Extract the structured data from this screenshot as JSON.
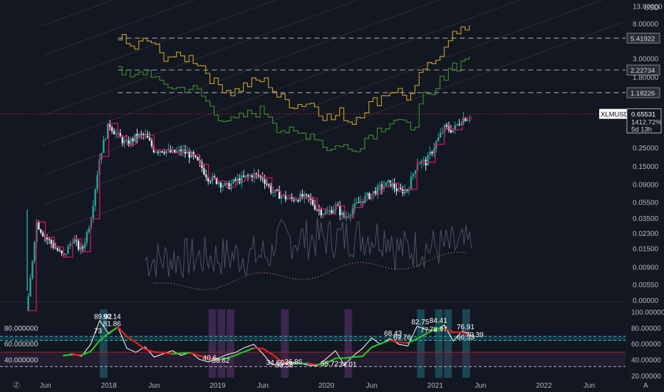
{
  "colors": {
    "background": "#131722",
    "candle_up": "#26a69a",
    "candle_down": "#ef5350",
    "price_line": "#c2185b",
    "upper_band": "#c9a227",
    "lower_band": "#3f8f2a",
    "dashed_level": "#9598a1",
    "rsi_line": "#ffffff",
    "rsi_ma_up": "#22c52b",
    "rsi_ma_down": "#e91e1e",
    "ob_band": "#26c6da",
    "os_band": "#7e57c2",
    "highlight_teal": "#1e5d68",
    "highlight_purple": "#4a2f5c"
  },
  "chart_data": [
    {
      "type": "line",
      "symbol": "XLMUSD",
      "scale": "log",
      "y_axis": {
        "currency": "USD",
        "tick_labels": [
          "13.00000",
          "8.00000",
          "3.00000",
          "1.80000",
          "0.25000",
          "0.15000",
          "0.09000",
          "0.05500",
          "0.03500",
          "0.02300",
          "0.01500",
          "0.00900",
          "0.00550",
          "0.00000"
        ],
        "ylim": [
          0.0046,
          14.5
        ]
      },
      "x_axis": {
        "tick_labels": [
          "Jun",
          "2018",
          "Jun",
          "2019",
          "Jun",
          "2020",
          "Jun",
          "2021",
          "Jun",
          "2022",
          "Jun"
        ],
        "tick_dates": [
          "2017-06",
          "2018-01",
          "2018-06",
          "2019-01",
          "2019-06",
          "2020-01",
          "2020-06",
          "2021-01",
          "2021-06",
          "2022-01",
          "2022-06"
        ],
        "xlim": [
          "2017-01",
          "2022-10"
        ]
      },
      "price_series": {
        "name": "XLMUSD",
        "x": [
          "2017-04",
          "2017-05",
          "2017-06",
          "2017-07",
          "2017-08",
          "2017-09",
          "2017-10",
          "2017-11",
          "2017-12",
          "2018-01",
          "2018-02",
          "2018-03",
          "2018-04",
          "2018-05",
          "2018-06",
          "2018-07",
          "2018-08",
          "2018-09",
          "2018-10",
          "2018-11",
          "2018-12",
          "2019-01",
          "2019-02",
          "2019-03",
          "2019-04",
          "2019-05",
          "2019-06",
          "2019-07",
          "2019-08",
          "2019-09",
          "2019-10",
          "2019-11",
          "2019-12",
          "2020-01",
          "2020-02",
          "2020-03",
          "2020-04",
          "2020-05",
          "2020-06",
          "2020-07",
          "2020-08",
          "2020-09",
          "2020-10",
          "2020-11",
          "2020-12",
          "2021-01",
          "2021-02",
          "2021-03",
          "2021-04",
          "2021-05"
        ],
        "y": [
          0.0027,
          0.032,
          0.021,
          0.016,
          0.012,
          0.02,
          0.014,
          0.035,
          0.2,
          0.5,
          0.35,
          0.28,
          0.35,
          0.36,
          0.24,
          0.24,
          0.22,
          0.23,
          0.21,
          0.16,
          0.11,
          0.1,
          0.085,
          0.1,
          0.11,
          0.12,
          0.11,
          0.075,
          0.067,
          0.06,
          0.064,
          0.062,
          0.046,
          0.04,
          0.05,
          0.036,
          0.048,
          0.06,
          0.07,
          0.085,
          0.095,
          0.075,
          0.08,
          0.17,
          0.17,
          0.28,
          0.44,
          0.42,
          0.58,
          0.6
        ]
      },
      "reference_levels": [
        {
          "label": "5.41922",
          "value": 5.41922
        },
        {
          "label": "2.22734",
          "value": 2.22734
        },
        {
          "label": "1.18226",
          "value": 1.18226
        }
      ],
      "last_price": {
        "symbol": "XLMUSD",
        "value": "0.65531",
        "change": "1412.72%",
        "countdown": "5d 13h"
      }
    },
    {
      "type": "line",
      "indicator": "RSI",
      "y_axis": {
        "tick_labels": [
          "100.00000",
          "80.00000",
          "60.00000",
          "40.00000",
          "20.00000"
        ],
        "left_tick_labels": [
          "80.000000",
          "60.000000",
          "40.000000"
        ],
        "ylim": [
          18,
          104
        ]
      },
      "bands": {
        "overbought": [
          65,
          70
        ],
        "mid": 50,
        "oversold": 32
      },
      "series": [
        {
          "x": [
            "2017-08",
            "2017-09",
            "2017-10",
            "2017-11",
            "2017-12",
            "2018-01",
            "2018-02",
            "2018-03",
            "2018-04",
            "2018-05",
            "2018-06",
            "2018-07",
            "2018-08",
            "2018-09",
            "2018-10",
            "2018-11",
            "2018-12",
            "2019-01",
            "2019-02",
            "2019-03",
            "2019-04",
            "2019-05",
            "2019-06",
            "2019-07",
            "2019-08",
            "2019-09",
            "2019-10",
            "2019-11",
            "2019-12",
            "2020-01",
            "2020-02",
            "2020-03",
            "2020-04",
            "2020-05",
            "2020-06",
            "2020-07",
            "2020-08",
            "2020-09",
            "2020-10",
            "2020-11",
            "2020-12",
            "2021-01",
            "2021-02",
            "2021-03",
            "2021-04",
            "2021-05"
          ],
          "y": [
            46,
            48,
            45,
            60,
            89.92,
            73,
            81.86,
            55,
            50,
            57,
            44,
            48,
            52,
            46,
            50,
            41,
            38,
            42,
            47,
            50,
            56,
            60,
            48,
            34.6,
            33.6,
            38,
            36,
            34,
            33,
            42,
            52,
            34.01,
            46,
            55,
            68,
            60,
            67.43,
            60,
            58,
            82.75,
            78.47,
            77,
            84.41,
            64,
            76.91,
            70.39
          ]
        }
      ],
      "peak_labels": [
        "89.92",
        "90.14",
        "81.86",
        "73",
        "82.75",
        "77",
        "78.47",
        "84.41",
        "76.91",
        "68.43",
        "69.76",
        "66.33",
        "70.39",
        "40.6",
        "38.62",
        "34.60",
        "33.58",
        "36.86",
        "35.72",
        "34.01"
      ]
    }
  ]
}
